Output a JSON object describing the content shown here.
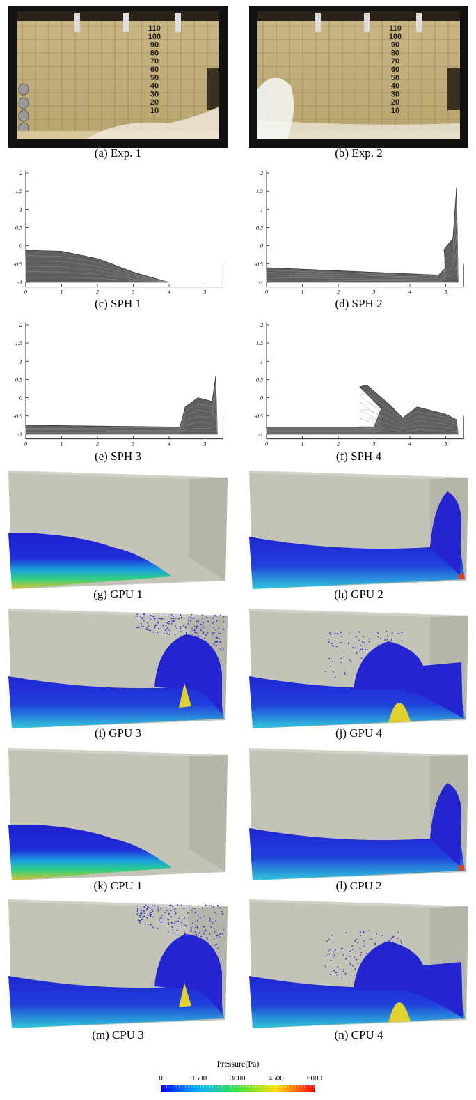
{
  "panels": [
    {
      "caption": "(a) Exp. 1"
    },
    {
      "caption": "(b) Exp. 2"
    },
    {
      "caption": "(c) SPH 1"
    },
    {
      "caption": "(d) SPH 2"
    },
    {
      "caption": "(e) SPH 3"
    },
    {
      "caption": "(f) SPH 4"
    },
    {
      "caption": "(g) GPU 1"
    },
    {
      "caption": "(h) GPU 2"
    },
    {
      "caption": "(i) GPU 3"
    },
    {
      "caption": "(j) GPU 4"
    },
    {
      "caption": "(k) CPU 1"
    },
    {
      "caption": "(l) CPU 2"
    },
    {
      "caption": "(m) CPU 3"
    },
    {
      "caption": "(n) CPU 4"
    }
  ],
  "photo_scale": [
    "110",
    "100",
    "90",
    "80",
    "70",
    "60",
    "50",
    "40",
    "30",
    "20",
    "10"
  ],
  "sph_axes": {
    "yticks": [
      "2",
      "1.5",
      "1",
      "0.5",
      "0",
      "-0.5",
      "-1"
    ],
    "xticks": [
      "0",
      "1",
      "2",
      "3",
      "4",
      "5"
    ]
  },
  "colorbar": {
    "title": "Pressure(Pa)",
    "ticks": [
      "0",
      "1500",
      "3000",
      "4500",
      "6000"
    ]
  }
}
